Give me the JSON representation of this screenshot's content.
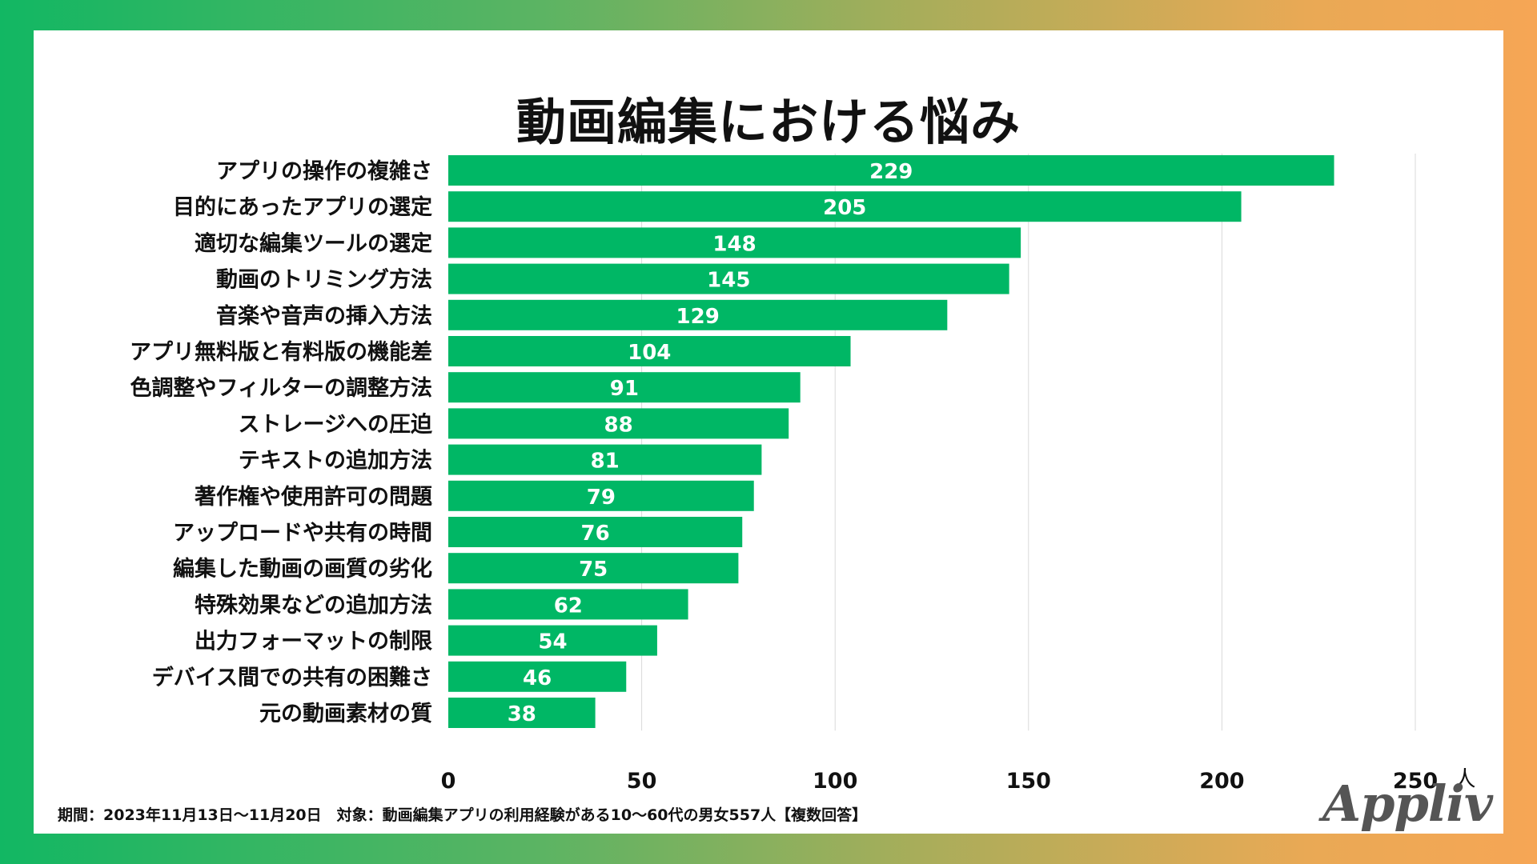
{
  "title": "動画編集における悩み",
  "footer": "期間：2023年11月13日〜11月20日　対象：動画編集アプリの利用経験がある10〜60代の男女557人【複数回答】",
  "logo": "Appliv",
  "colors": {
    "bar": "#00b765",
    "grid": "#d9d9d9",
    "label": "#111111",
    "value": "#ffffff"
  },
  "chart_data": {
    "type": "bar",
    "orientation": "horizontal",
    "title": "動画編集における悩み",
    "unit": "人",
    "xlim": [
      0,
      250
    ],
    "xticks": [
      0,
      50,
      100,
      150,
      200,
      250
    ],
    "categories": [
      "アプリの操作の複雑さ",
      "目的にあったアプリの選定",
      "適切な編集ツールの選定",
      "動画のトリミング方法",
      "音楽や音声の挿入方法",
      "アプリ無料版と有料版の機能差",
      "色調整やフィルターの調整方法",
      "ストレージへの圧迫",
      "テキストの追加方法",
      "著作権や使用許可の問題",
      "アップロードや共有の時間",
      "編集した動画の画質の劣化",
      "特殊効果などの追加方法",
      "出力フォーマットの制限",
      "デバイス間での共有の困難さ",
      "元の動画素材の質"
    ],
    "values": [
      229,
      205,
      148,
      145,
      129,
      104,
      91,
      88,
      81,
      79,
      76,
      75,
      62,
      54,
      46,
      38
    ]
  }
}
